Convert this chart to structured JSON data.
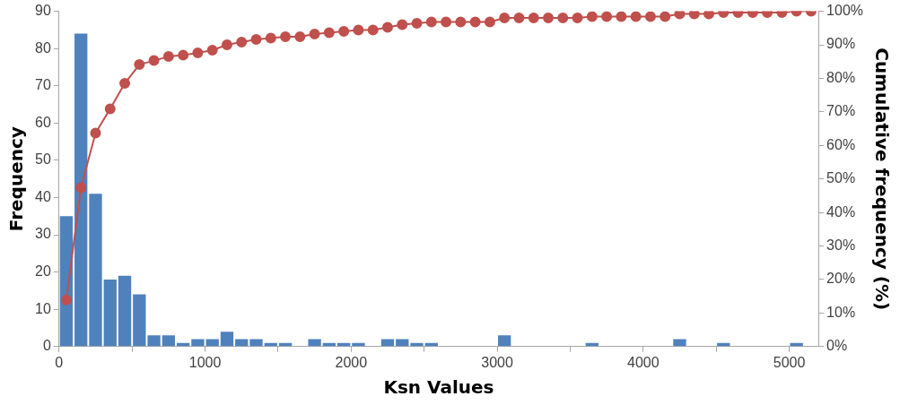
{
  "chart_data": {
    "type": "histogram",
    "xlabel": "Ksn Values",
    "ylabel": "Frequency",
    "y2label": "Cumulative frequency (%)",
    "bins": [
      0,
      100,
      200,
      300,
      400,
      500,
      600,
      700,
      800,
      900,
      1000,
      1100,
      1200,
      1300,
      1400,
      1500,
      1600,
      1700,
      1800,
      1900,
      2000,
      2100,
      2200,
      2300,
      2400,
      2500,
      2600,
      2700,
      2800,
      2900,
      3000,
      3100,
      3200,
      3300,
      3400,
      3500,
      3600,
      3700,
      3800,
      3900,
      4000,
      4100,
      4200,
      4300,
      4400,
      4500,
      4600,
      4700,
      4800,
      4900,
      5000,
      5100,
      5200
    ],
    "series": [
      {
        "type": "histogram",
        "color": "#4f81bd",
        "values": [
          35,
          84,
          41,
          18,
          19,
          14,
          3,
          3,
          1,
          2,
          2,
          4,
          2,
          2,
          1,
          1,
          0,
          2,
          1,
          1,
          1,
          0,
          2,
          2,
          1,
          1,
          0,
          0,
          0,
          0,
          3,
          0,
          0,
          0,
          0,
          0,
          1,
          0,
          0,
          0,
          0,
          0,
          2,
          0,
          0,
          1,
          0,
          0,
          0,
          0,
          1,
          0
        ]
      },
      {
        "type": "line",
        "axis": "y2",
        "color": "#c0504d",
        "marker": "circle",
        "x": [
          50,
          150,
          250,
          350,
          450,
          550,
          650,
          750,
          850,
          950,
          1050,
          1150,
          1250,
          1350,
          1450,
          1550,
          1650,
          1750,
          1850,
          1950,
          2050,
          2150,
          2250,
          2350,
          2450,
          2550,
          2650,
          2750,
          2850,
          2950,
          3050,
          3150,
          3250,
          3350,
          3450,
          3550,
          3650,
          3750,
          3850,
          3950,
          4050,
          4150,
          4250,
          4350,
          4450,
          4550,
          4650,
          4750,
          4850,
          4950,
          5050,
          5150
        ],
        "values": [
          13.9,
          47.4,
          63.7,
          70.9,
          78.5,
          84.1,
          85.3,
          86.5,
          86.9,
          87.6,
          88.4,
          90.0,
          90.8,
          91.6,
          92.0,
          92.4,
          92.4,
          93.2,
          93.6,
          94.0,
          94.4,
          94.4,
          95.2,
          96.0,
          96.4,
          96.8,
          96.8,
          96.8,
          96.8,
          96.8,
          98.0,
          98.0,
          98.0,
          98.0,
          98.0,
          98.0,
          98.4,
          98.4,
          98.4,
          98.4,
          98.4,
          98.4,
          99.2,
          99.2,
          99.2,
          99.6,
          99.6,
          99.6,
          99.6,
          99.6,
          100,
          100
        ]
      }
    ],
    "xlim": [
      0,
      5200
    ],
    "xticks": [
      0,
      {
        "value": 500,
        "label": null
      },
      1000,
      {
        "value": 1500,
        "label": null
      },
      2000,
      {
        "value": 2500,
        "label": null
      },
      3000,
      {
        "value": 3500,
        "label": null
      },
      4000,
      {
        "value": 4500,
        "label": null
      },
      5000
    ],
    "ylim": [
      0,
      90
    ],
    "yticks": [
      0,
      10,
      20,
      30,
      40,
      50,
      60,
      70,
      80,
      90
    ],
    "y2lim": [
      0,
      100
    ],
    "y2ticks": [
      {
        "value": 0,
        "label": "0%"
      },
      {
        "value": 10,
        "label": "10%"
      },
      {
        "value": 20,
        "label": "20%"
      },
      {
        "value": 30,
        "label": "30%"
      },
      {
        "value": 40,
        "label": "40%"
      },
      {
        "value": 50,
        "label": "50%"
      },
      {
        "value": 60,
        "label": "60%"
      },
      {
        "value": 70,
        "label": "70%"
      },
      {
        "value": 80,
        "label": "80%"
      },
      {
        "value": 90,
        "label": "90%"
      },
      {
        "value": 100,
        "label": "100%"
      }
    ],
    "grid": false,
    "legend": false
  }
}
